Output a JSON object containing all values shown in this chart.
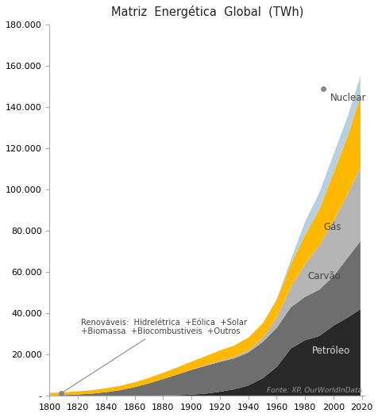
{
  "title": "Matriz  Energética  Global  (TWh)",
  "ylim": [
    0,
    180000
  ],
  "xlim": [
    1800,
    2022
  ],
  "yticks": [
    0,
    20000,
    40000,
    60000,
    80000,
    100000,
    120000,
    140000,
    160000,
    180000
  ],
  "xticks": [
    1800,
    1820,
    1840,
    1860,
    1880,
    1900,
    1920,
    1940,
    1960,
    1980,
    2000,
    2020
  ],
  "background_color": "#ffffff",
  "source_text": "Fonte: XP, OurWorldInData",
  "annotation_renovaveis": "Renováveis:  Hidrelétrica  +Eólica  +Solar\n+Biomassa  +Biocombustiveis  +Outros",
  "annotation_nuclear": "Nuclear",
  "annotation_gas": "Gás",
  "annotation_carvao": "Carvão",
  "annotation_petroleo": "Petróleo",
  "colors": {
    "renovaveis": "#FFB800",
    "petroleo": "#282828",
    "carvao": "#6e6e6e",
    "gas": "#b5b5b5",
    "nuclear": "#b8cfe0"
  },
  "years": [
    1800,
    1810,
    1820,
    1830,
    1840,
    1850,
    1860,
    1870,
    1880,
    1890,
    1900,
    1910,
    1920,
    1930,
    1940,
    1950,
    1960,
    1970,
    1980,
    1990,
    2000,
    2010,
    2019
  ],
  "petroleo": [
    0,
    0,
    0,
    0,
    5,
    15,
    40,
    80,
    180,
    350,
    600,
    1100,
    2000,
    3200,
    5000,
    8500,
    14000,
    23000,
    27000,
    29000,
    34000,
    38000,
    42000
  ],
  "carvao": [
    200,
    400,
    700,
    1100,
    1800,
    2800,
    4200,
    6000,
    8000,
    10000,
    12000,
    13500,
    14500,
    15000,
    16000,
    17500,
    19000,
    20000,
    21000,
    22500,
    24000,
    29000,
    33000
  ],
  "gas": [
    0,
    0,
    0,
    0,
    0,
    0,
    0,
    0,
    0,
    50,
    100,
    250,
    500,
    700,
    1000,
    2000,
    5000,
    10000,
    16000,
    21500,
    27000,
    31000,
    36000
  ],
  "renovaveis": [
    1200,
    1350,
    1500,
    1650,
    1900,
    2100,
    2350,
    2650,
    3000,
    3400,
    3900,
    4400,
    5000,
    5500,
    6200,
    7000,
    8500,
    11000,
    14000,
    17500,
    23000,
    28000,
    34000
  ],
  "nuclear": [
    0,
    0,
    0,
    0,
    0,
    0,
    0,
    0,
    0,
    0,
    0,
    0,
    0,
    0,
    0,
    0,
    500,
    2000,
    6500,
    8000,
    9000,
    9500,
    10000
  ]
}
